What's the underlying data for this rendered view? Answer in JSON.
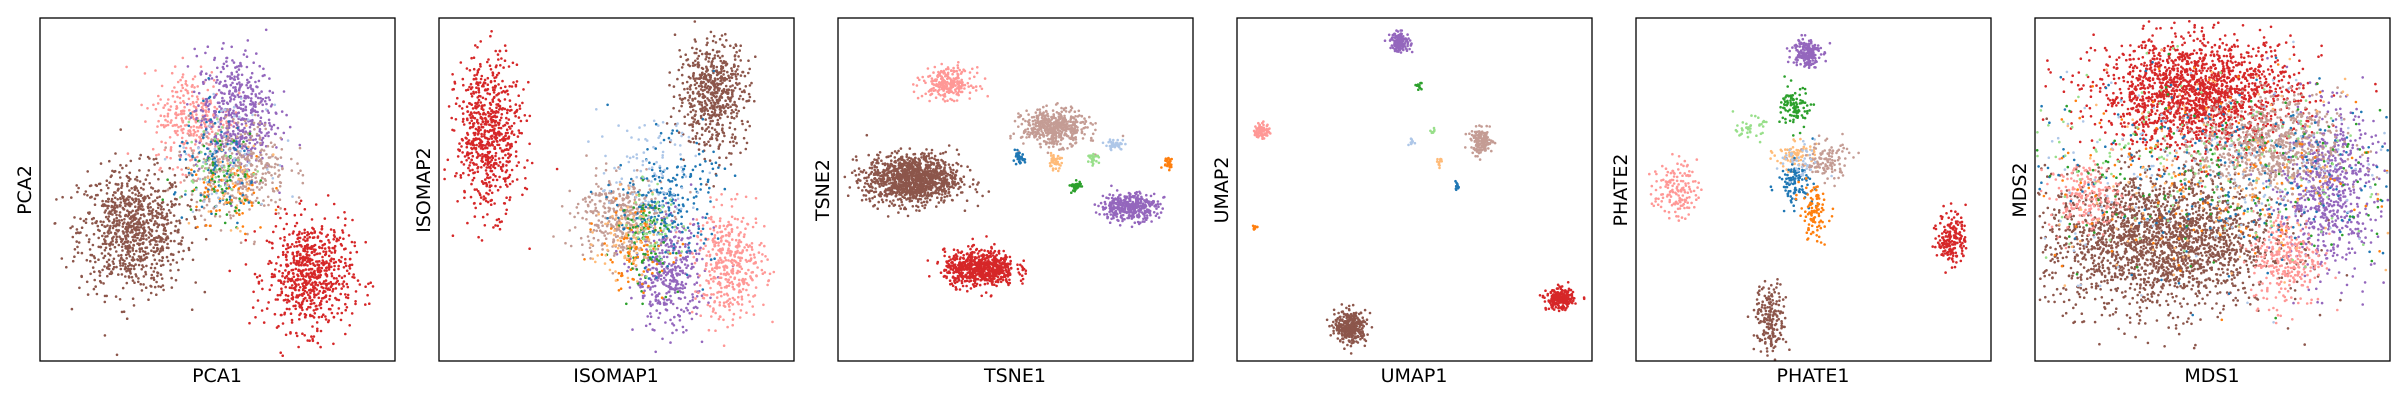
{
  "palette": {
    "blue": "#1f77b4",
    "orange": "#ff7f0e",
    "green": "#2ca02c",
    "light-green": "#98df8a",
    "red": "#d62728",
    "light-red": "#ff9896",
    "purple": "#9467bd",
    "brown": "#8c564b",
    "light-brown": "#c49c94",
    "light-blue": "#aec7e8",
    "light-orange": "#ffbb78"
  },
  "chart_data": [
    {
      "type": "scatter",
      "title": "",
      "xlabel": "PCA1",
      "ylabel": "PCA2",
      "xlim": [
        0,
        100
      ],
      "ylim": [
        0,
        100
      ],
      "ticks": "none",
      "grid": false,
      "legend": "none",
      "clusters": [
        {
          "color": "brown",
          "center": [
            26,
            38
          ],
          "spread": [
            7.5,
            9
          ],
          "n": 900
        },
        {
          "color": "red",
          "center": [
            76,
            25
          ],
          "spread": [
            6,
            8
          ],
          "n": 700
        },
        {
          "color": "light-red",
          "center": [
            43,
            71
          ],
          "spread": [
            5.5,
            7
          ],
          "n": 300
        },
        {
          "color": "purple",
          "center": [
            55,
            72
          ],
          "spread": [
            5.5,
            9
          ],
          "n": 500
        },
        {
          "color": "light-brown",
          "center": [
            56,
            56
          ],
          "spread": [
            7,
            7
          ],
          "n": 400
        },
        {
          "color": "blue",
          "center": [
            50,
            56
          ],
          "spread": [
            6,
            8
          ],
          "n": 100
        },
        {
          "color": "orange",
          "center": [
            53,
            48
          ],
          "spread": [
            6,
            6
          ],
          "n": 60
        },
        {
          "color": "green",
          "center": [
            51,
            55
          ],
          "spread": [
            6,
            7
          ],
          "n": 60
        },
        {
          "color": "light-blue",
          "center": [
            52,
            60
          ],
          "spread": [
            6,
            7
          ],
          "n": 60
        },
        {
          "color": "light-green",
          "center": [
            50,
            58
          ],
          "spread": [
            5,
            6
          ],
          "n": 40
        },
        {
          "color": "light-orange",
          "center": [
            54,
            52
          ],
          "spread": [
            5,
            6
          ],
          "n": 40
        }
      ]
    },
    {
      "type": "scatter",
      "title": "",
      "xlabel": "ISOMAP1",
      "ylabel": "ISOMAP2",
      "xlim": [
        0,
        100
      ],
      "ylim": [
        0,
        100
      ],
      "ticks": "none",
      "grid": false,
      "legend": "none",
      "clusters": [
        {
          "color": "red",
          "center": [
            14,
            66
          ],
          "spread": [
            4.5,
            11
          ],
          "n": 700
        },
        {
          "color": "brown",
          "center": [
            77,
            78
          ],
          "spread": [
            5,
            8
          ],
          "n": 600
        },
        {
          "color": "purple",
          "center": [
            65,
            25
          ],
          "spread": [
            5,
            8
          ],
          "n": 400
        },
        {
          "color": "light-red",
          "center": [
            82,
            28
          ],
          "spread": [
            5,
            8
          ],
          "n": 400
        },
        {
          "color": "light-brown",
          "center": [
            51,
            42
          ],
          "spread": [
            6,
            6
          ],
          "n": 400
        },
        {
          "color": "blue",
          "center": [
            64,
            46
          ],
          "spread": [
            7,
            9
          ],
          "n": 250
        },
        {
          "color": "green",
          "center": [
            58,
            36
          ],
          "spread": [
            4,
            7
          ],
          "n": 80
        },
        {
          "color": "orange",
          "center": [
            55,
            32
          ],
          "spread": [
            5,
            6
          ],
          "n": 80
        },
        {
          "color": "light-blue",
          "center": [
            59,
            55
          ],
          "spread": [
            7,
            8
          ],
          "n": 100
        },
        {
          "color": "light-orange",
          "center": [
            52,
            36
          ],
          "spread": [
            4,
            6
          ],
          "n": 80
        },
        {
          "color": "light-green",
          "center": [
            62,
            40
          ],
          "spread": [
            4,
            6
          ],
          "n": 50
        }
      ]
    },
    {
      "type": "scatter",
      "title": "",
      "xlabel": "TSNE1",
      "ylabel": "TSNE2",
      "xlim": [
        0,
        100
      ],
      "ylim": [
        0,
        100
      ],
      "ticks": "none",
      "grid": false,
      "legend": "none",
      "clusters": [
        {
          "color": "brown",
          "center": [
            21,
            53
          ],
          "spread": [
            6.5,
            3.6
          ],
          "n": 1200
        },
        {
          "color": "red",
          "center": [
            40,
            27
          ],
          "spread": [
            5,
            2.6
          ],
          "n": 700
        },
        {
          "color": "light-red",
          "center": [
            31,
            81
          ],
          "spread": [
            3.5,
            2.2
          ],
          "n": 250
        },
        {
          "color": "light-brown",
          "center": [
            61,
            68
          ],
          "spread": [
            4.5,
            2.6
          ],
          "n": 500
        },
        {
          "color": "purple",
          "center": [
            82,
            45
          ],
          "spread": [
            4,
            2
          ],
          "n": 400
        },
        {
          "color": "blue",
          "center": [
            51,
            59
          ],
          "spread": [
            0.8,
            0.9
          ],
          "n": 40
        },
        {
          "color": "light-orange",
          "center": [
            61,
            58
          ],
          "spread": [
            1,
            1
          ],
          "n": 40
        },
        {
          "color": "green",
          "center": [
            67,
            51
          ],
          "spread": [
            0.8,
            0.8
          ],
          "n": 40
        },
        {
          "color": "light-green",
          "center": [
            72,
            59
          ],
          "spread": [
            0.8,
            0.6
          ],
          "n": 25
        },
        {
          "color": "light-blue",
          "center": [
            78,
            63
          ],
          "spread": [
            1.4,
            0.8
          ],
          "n": 40
        },
        {
          "color": "orange",
          "center": [
            93,
            58
          ],
          "spread": [
            0.8,
            0.9
          ],
          "n": 30
        }
      ]
    },
    {
      "type": "scatter",
      "title": "",
      "xlabel": "UMAP1",
      "ylabel": "UMAP2",
      "xlim": [
        0,
        100
      ],
      "ylim": [
        0,
        100
      ],
      "ticks": "none",
      "grid": false,
      "legend": "none",
      "clusters": [
        {
          "color": "brown",
          "center": [
            32,
            10
          ],
          "spread": [
            2.2,
            2.3
          ],
          "n": 350
        },
        {
          "color": "red",
          "center": [
            91,
            18
          ],
          "spread": [
            1.9,
            1.5
          ],
          "n": 250
        },
        {
          "color": "purple",
          "center": [
            46,
            93
          ],
          "spread": [
            1.4,
            1.4
          ],
          "n": 150
        },
        {
          "color": "light-red",
          "center": [
            7,
            67
          ],
          "spread": [
            1.1,
            1.1
          ],
          "n": 80
        },
        {
          "color": "light-brown",
          "center": [
            69,
            64
          ],
          "spread": [
            1.5,
            1.8
          ],
          "n": 150
        },
        {
          "color": "green",
          "center": [
            51,
            80
          ],
          "spread": [
            0.5,
            0.6
          ],
          "n": 12
        },
        {
          "color": "light-green",
          "center": [
            55,
            67
          ],
          "spread": [
            0.4,
            0.4
          ],
          "n": 8
        },
        {
          "color": "light-blue",
          "center": [
            49,
            64
          ],
          "spread": [
            0.5,
            0.5
          ],
          "n": 10
        },
        {
          "color": "light-orange",
          "center": [
            57,
            58
          ],
          "spread": [
            0.6,
            0.6
          ],
          "n": 12
        },
        {
          "color": "blue",
          "center": [
            62,
            51
          ],
          "spread": [
            0.4,
            0.6
          ],
          "n": 12
        },
        {
          "color": "orange",
          "center": [
            5,
            39
          ],
          "spread": [
            0.4,
            0.4
          ],
          "n": 10
        }
      ]
    },
    {
      "type": "scatter",
      "title": "",
      "xlabel": "PHATE1",
      "ylabel": "PHATE2",
      "xlim": [
        0,
        100
      ],
      "ylim": [
        0,
        100
      ],
      "ticks": "none",
      "grid": false,
      "legend": "none",
      "clusters": [
        {
          "color": "purple",
          "center": [
            48,
            90
          ],
          "spread": [
            2,
            2.2
          ],
          "n": 180
        },
        {
          "color": "green",
          "center": [
            45,
            74
          ],
          "spread": [
            2,
            3
          ],
          "n": 100
        },
        {
          "color": "light-green",
          "center": [
            32,
            68
          ],
          "spread": [
            2,
            1.5
          ],
          "n": 40
        },
        {
          "color": "light-orange",
          "center": [
            45,
            60
          ],
          "spread": [
            3,
            2
          ],
          "n": 80
        },
        {
          "color": "light-brown",
          "center": [
            53,
            58
          ],
          "spread": [
            3.5,
            3
          ],
          "n": 120
        },
        {
          "color": "blue",
          "center": [
            45,
            52
          ],
          "spread": [
            2.5,
            3
          ],
          "n": 100
        },
        {
          "color": "orange",
          "center": [
            50,
            43
          ],
          "spread": [
            2,
            4
          ],
          "n": 100
        },
        {
          "color": "light-red",
          "center": [
            11,
            50
          ],
          "spread": [
            3,
            4
          ],
          "n": 150
        },
        {
          "color": "red",
          "center": [
            89,
            36
          ],
          "spread": [
            2,
            4
          ],
          "n": 180
        },
        {
          "color": "brown",
          "center": [
            38,
            12
          ],
          "spread": [
            2.2,
            5
          ],
          "n": 200
        },
        {
          "color": "light-blue",
          "center": [
            46,
            58
          ],
          "spread": [
            3,
            3
          ],
          "n": 40
        }
      ]
    },
    {
      "type": "scatter",
      "title": "",
      "xlabel": "MDS1",
      "ylabel": "MDS2",
      "xlim": [
        0,
        100
      ],
      "ylim": [
        0,
        100
      ],
      "ticks": "none",
      "grid": false,
      "legend": "none",
      "clusters": [
        {
          "color": "brown",
          "center": [
            35,
            35
          ],
          "spread": [
            16,
            10
          ],
          "n": 2200
        },
        {
          "color": "red",
          "center": [
            46,
            78
          ],
          "spread": [
            14,
            8
          ],
          "n": 1800
        },
        {
          "color": "purple",
          "center": [
            82,
            50
          ],
          "spread": [
            7,
            12
          ],
          "n": 700
        },
        {
          "color": "light-brown",
          "center": [
            66,
            63
          ],
          "spread": [
            10,
            7
          ],
          "n": 700
        },
        {
          "color": "light-red",
          "center": [
            71,
            30
          ],
          "spread": [
            5,
            7
          ],
          "n": 300
        },
        {
          "color": "light-red",
          "center": [
            14,
            48
          ],
          "spread": [
            5,
            5
          ],
          "n": 200
        },
        {
          "color": "blue",
          "center": [
            50,
            55
          ],
          "spread": [
            28,
            14
          ],
          "n": 250
        },
        {
          "color": "orange",
          "center": [
            50,
            55
          ],
          "spread": [
            28,
            14
          ],
          "n": 150
        },
        {
          "color": "green",
          "center": [
            50,
            55
          ],
          "spread": [
            28,
            14
          ],
          "n": 150
        },
        {
          "color": "light-blue",
          "center": [
            50,
            55
          ],
          "spread": [
            28,
            14
          ],
          "n": 150
        },
        {
          "color": "light-green",
          "center": [
            50,
            55
          ],
          "spread": [
            28,
            14
          ],
          "n": 150
        },
        {
          "color": "light-orange",
          "center": [
            50,
            55
          ],
          "spread": [
            28,
            14
          ],
          "n": 150
        }
      ]
    }
  ]
}
